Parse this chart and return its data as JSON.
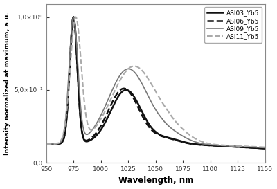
{
  "title": "",
  "xlabel": "Wavelength, nm",
  "ylabel": "Intensity normalized at maximum, a.u.",
  "xlim": [
    950,
    1150
  ],
  "ylim": [
    0.0,
    1.09
  ],
  "xticks": [
    950,
    975,
    1000,
    1025,
    1050,
    1075,
    1100,
    1125,
    1150
  ],
  "ytick_positions": [
    0.0,
    0.5,
    1.0
  ],
  "ytick_labels": [
    "0,0",
    "5,0×10⁻¹",
    "1,0×10⁰"
  ],
  "series": [
    {
      "label": "ASI03_Yb5",
      "color": "#111111",
      "linestyle": "solid",
      "linewidth": 1.8
    },
    {
      "label": "ASI06_Yb5",
      "color": "#111111",
      "linestyle": "dashed",
      "linewidth": 1.8
    },
    {
      "label": "ASI09_Yb5",
      "color": "#777777",
      "linestyle": "solid",
      "linewidth": 1.2
    },
    {
      "label": "ASI11_Yb5",
      "color": "#aaaaaa",
      "linestyle": "dashed",
      "linewidth": 1.5
    }
  ],
  "background_color": "#ffffff",
  "plot_bg": "#ffffff"
}
